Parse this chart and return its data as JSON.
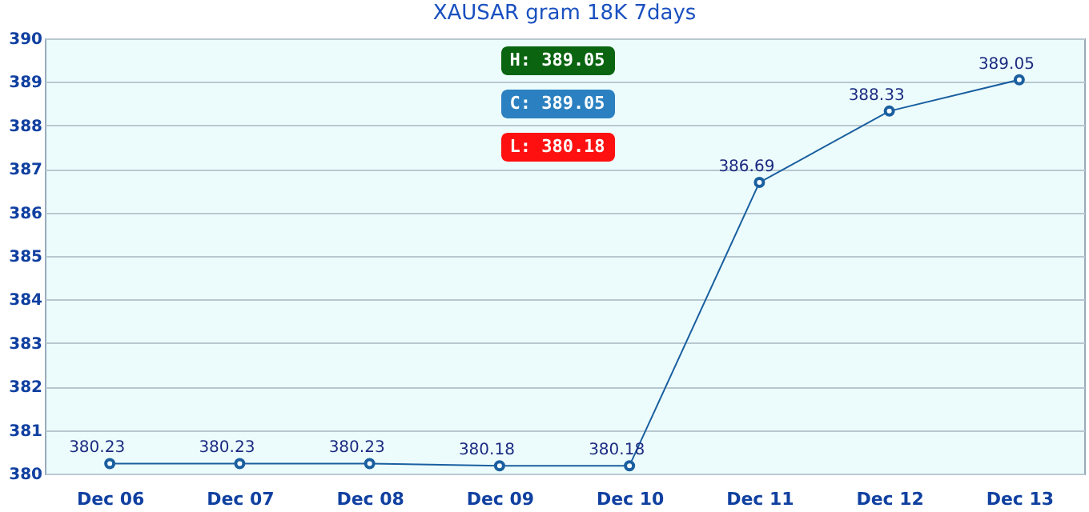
{
  "chart_data": {
    "type": "line",
    "title": "XAUSAR gram 18K 7days",
    "categories": [
      "Dec 06",
      "Dec 07",
      "Dec 08",
      "Dec 09",
      "Dec 10",
      "Dec 11",
      "Dec 12",
      "Dec 13"
    ],
    "series": [
      {
        "color": "#1a5fa0",
        "values": [
          380.23,
          380.23,
          380.23,
          380.18,
          380.18,
          386.69,
          388.33,
          389.05
        ]
      }
    ],
    "ylim": [
      380,
      390
    ],
    "yticks": [
      380,
      381,
      382,
      383,
      384,
      385,
      386,
      387,
      388,
      389,
      390
    ],
    "grid": "y",
    "marker": "circle",
    "line_style": "solid",
    "data_labels": true,
    "annotations": [
      "H: 389.05",
      "C: 389.05",
      "L: 380.18"
    ]
  }
}
